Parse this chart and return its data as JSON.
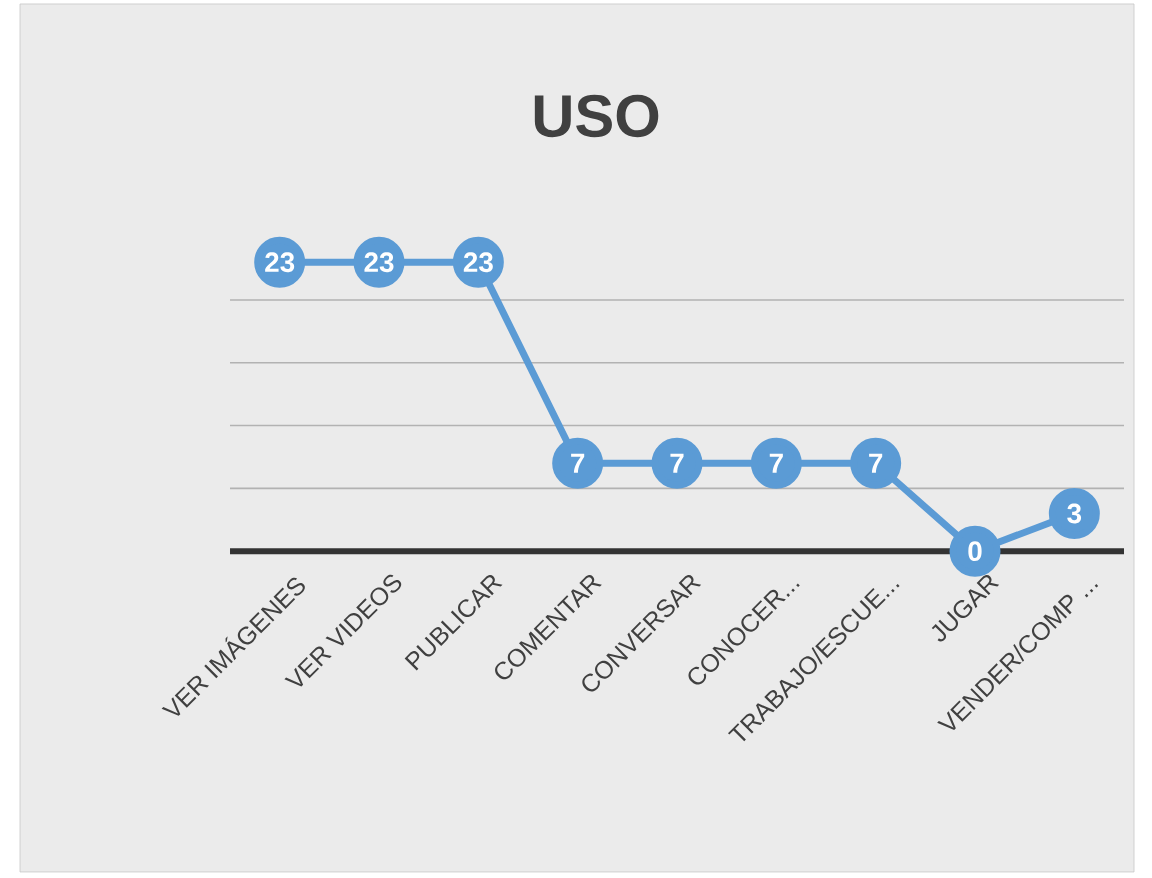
{
  "chart_data": {
    "type": "line",
    "title": "USO",
    "categories": [
      "VER IMÁGENES",
      "VER VIDEOS",
      "PUBLICAR",
      "COMENTAR",
      "CONVERSAR",
      "CONOCER...",
      "TRABAJO/ESCUE...",
      "JUGAR",
      "VENDER/COMP ..."
    ],
    "series": [
      {
        "color": "#5b9bd5",
        "values": [
          23,
          23,
          23,
          7,
          7,
          7,
          7,
          0,
          3
        ]
      }
    ],
    "tick_labels": "x",
    "grid": "y",
    "marker": "circle",
    "line_style": "solid",
    "data_labels": true
  }
}
